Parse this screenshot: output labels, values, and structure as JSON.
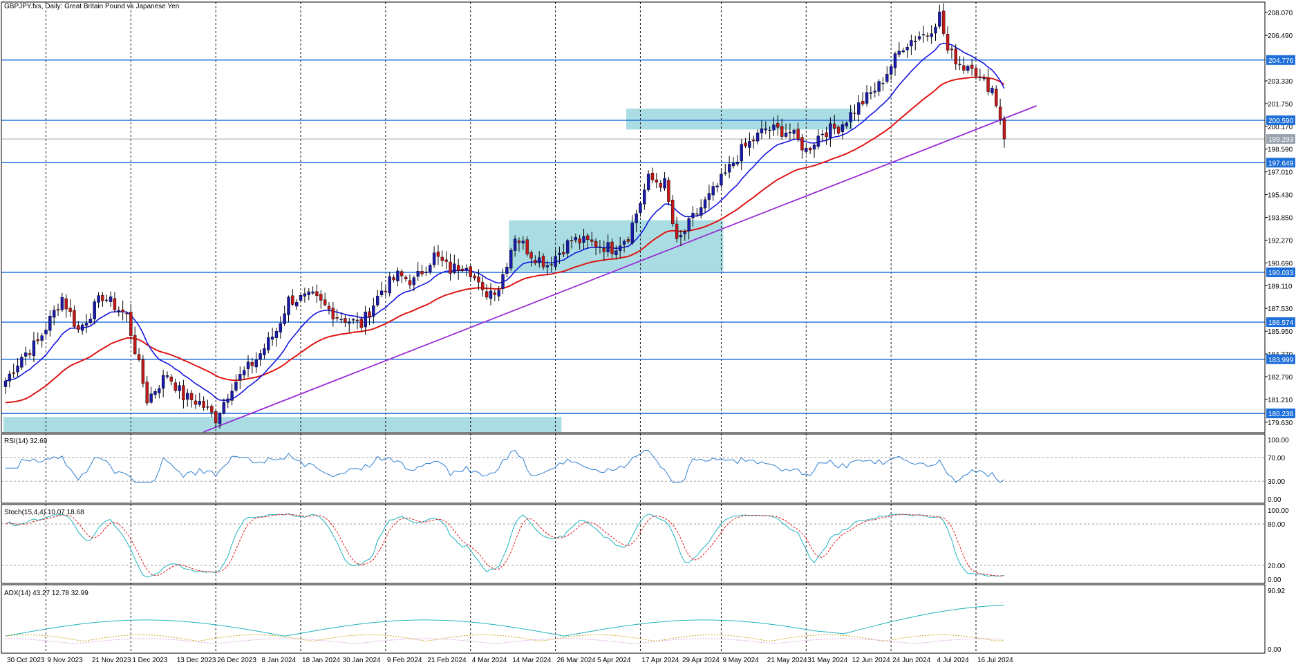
{
  "chart_data": {
    "type": "candlestick",
    "symbol_label": "GBPJPY.fxs, Daily:  Great Britain Pound vs Japanese Yen",
    "price_axis": {
      "ylim": [
        178.9,
        208.8
      ],
      "ticks": [
        208.07,
        206.49,
        203.33,
        201.75,
        200.17,
        198.59,
        197.01,
        195.43,
        193.85,
        192.27,
        190.69,
        189.11,
        187.53,
        185.95,
        184.37,
        182.79,
        181.21,
        179.63
      ],
      "tick_labels": [
        "208.070",
        "206.490",
        "203.330",
        "201.750",
        "200.170",
        "198.590",
        "197.010",
        "195.430",
        "193.850",
        "192.270",
        "190.690",
        "189.110",
        "187.530",
        "185.950",
        "184.370",
        "182.790",
        "181.210",
        "179.630"
      ]
    },
    "horizontal_levels": [
      {
        "value": 204.776,
        "label": "204.776",
        "color": "#1e6fd9"
      },
      {
        "value": 200.59,
        "label": "200.590",
        "color": "#1e6fd9"
      },
      {
        "value": 197.649,
        "label": "197.649",
        "color": "#1e6fd9"
      },
      {
        "value": 190.033,
        "label": "190.033",
        "color": "#1e6fd9"
      },
      {
        "value": 186.574,
        "label": "186.574",
        "color": "#1e6fd9"
      },
      {
        "value": 183.999,
        "label": "183.999",
        "color": "#1e6fd9"
      },
      {
        "value": 180.238,
        "label": "180.238",
        "color": "#1e6fd9"
      }
    ],
    "current_price": {
      "value": 199.293,
      "label": "199.293"
    },
    "zones": [
      {
        "from_bar": 0,
        "to_bar": 137,
        "low": 178.95,
        "high": 180.0,
        "color": "#a9dde3"
      },
      {
        "from_bar": 125,
        "to_bar": 177,
        "low": 190.1,
        "high": 193.65,
        "color": "#a9dde3"
      },
      {
        "from_bar": 154,
        "to_bar": 209,
        "low": 199.95,
        "high": 201.4,
        "color": "#a9dde3"
      }
    ],
    "trendline": {
      "start_bar": 49,
      "start_value": 178.95,
      "end_bar": 255,
      "end_value": 201.6,
      "color": "#9a2bd6"
    },
    "colors": {
      "bull": "#1a1aa8",
      "bear": "#c01818",
      "ma_fast": "#1515e0",
      "ma_slow": "#e01515"
    },
    "x_axis_labels": [
      "30 Oct 2023",
      "9 Nov 2023",
      "21 Nov 2023",
      "1 Dec 2023",
      "13 Dec 2023",
      "26 Dec 2023",
      "8 Jan 2024",
      "18 Jan 2024",
      "30 Jan 2024",
      "9 Feb 2024",
      "21 Feb 2024",
      "4 Mar 2024",
      "14 Mar 2024",
      "26 Mar 2024",
      "5 Apr 2024",
      "17 Apr 2024",
      "29 Apr 2024",
      "9 May 2024",
      "21 May 2024",
      "31 May 2024",
      "12 Jun 2024",
      "24 Jun 2024",
      "4 Jul 2024",
      "16 Jul 2024"
    ],
    "anchors": [
      [
        0,
        182.5
      ],
      [
        4,
        184.2
      ],
      [
        8,
        185.2
      ],
      [
        14,
        188.3
      ],
      [
        18,
        186.0
      ],
      [
        24,
        188.4
      ],
      [
        30,
        187.0
      ],
      [
        35,
        181.2
      ],
      [
        40,
        183.0
      ],
      [
        44,
        181.4
      ],
      [
        48,
        181.0
      ],
      [
        52,
        179.9
      ],
      [
        56,
        182.2
      ],
      [
        62,
        184.0
      ],
      [
        67,
        186.0
      ],
      [
        70,
        188.1
      ],
      [
        76,
        188.3
      ],
      [
        82,
        187.0
      ],
      [
        88,
        186.4
      ],
      [
        93,
        188.8
      ],
      [
        97,
        189.8
      ],
      [
        101,
        189.4
      ],
      [
        106,
        191.2
      ],
      [
        110,
        190.2
      ],
      [
        114,
        190.7
      ],
      [
        118,
        188.5
      ],
      [
        122,
        189.0
      ],
      [
        126,
        192.6
      ],
      [
        130,
        191.3
      ],
      [
        134,
        190.6
      ],
      [
        140,
        192.3
      ],
      [
        146,
        192.0
      ],
      [
        150,
        191.7
      ],
      [
        154,
        192.6
      ],
      [
        159,
        196.5
      ],
      [
        163,
        196.2
      ],
      [
        166,
        192.0
      ],
      [
        170,
        193.8
      ],
      [
        176,
        196.0
      ],
      [
        182,
        198.5
      ],
      [
        188,
        200.0
      ],
      [
        194,
        199.8
      ],
      [
        198,
        198.5
      ],
      [
        202,
        199.8
      ],
      [
        206,
        200.1
      ],
      [
        211,
        201.6
      ],
      [
        216,
        203.0
      ],
      [
        222,
        205.8
      ],
      [
        226,
        206.5
      ],
      [
        228,
        206.6
      ],
      [
        231,
        207.9
      ],
      [
        233,
        205.4
      ],
      [
        237,
        204.3
      ],
      [
        239,
        204.6
      ],
      [
        241,
        203.4
      ],
      [
        244,
        202.8
      ],
      [
        246,
        200.8
      ],
      [
        247,
        199.3
      ]
    ],
    "indicators": {
      "rsi": {
        "label": "RSI(14) 32.69",
        "ticks": [
          "100.00",
          "70.00",
          "30.00",
          "0.00"
        ],
        "levels": [
          70,
          30
        ]
      },
      "stoch": {
        "label": "Stoch(15,4,4) 10.07 18.68",
        "ticks": [
          "100.00",
          "80.00",
          "20.00",
          "0.00"
        ],
        "levels": [
          80,
          20
        ]
      },
      "adx": {
        "label": "ADX(14) 43.27 12.78 32.99",
        "ticks": [
          "90.92",
          "0.00"
        ]
      }
    }
  }
}
